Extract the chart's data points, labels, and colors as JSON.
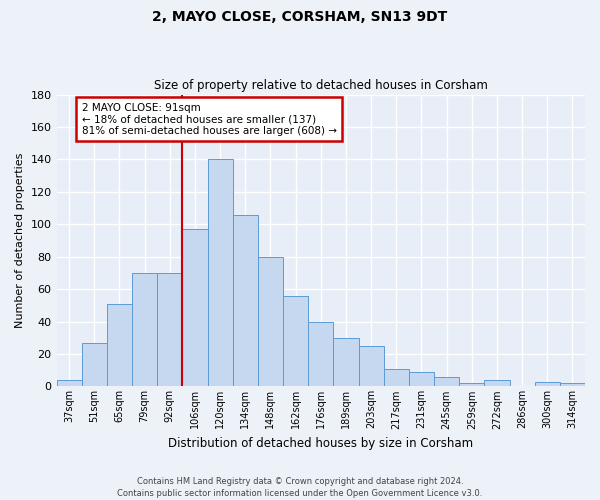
{
  "title": "2, MAYO CLOSE, CORSHAM, SN13 9DT",
  "subtitle": "Size of property relative to detached houses in Corsham",
  "xlabel": "Distribution of detached houses by size in Corsham",
  "ylabel": "Number of detached properties",
  "bar_labels": [
    "37sqm",
    "51sqm",
    "65sqm",
    "79sqm",
    "92sqm",
    "106sqm",
    "120sqm",
    "134sqm",
    "148sqm",
    "162sqm",
    "176sqm",
    "189sqm",
    "203sqm",
    "217sqm",
    "231sqm",
    "245sqm",
    "259sqm",
    "272sqm",
    "286sqm",
    "300sqm",
    "314sqm"
  ],
  "bar_values": [
    4,
    27,
    51,
    70,
    70,
    97,
    140,
    106,
    80,
    56,
    40,
    30,
    25,
    11,
    9,
    6,
    2,
    4,
    0,
    3,
    2
  ],
  "bar_color": "#c5d8f0",
  "bar_edge_color": "#5b9bd5",
  "annotation_title": "2 MAYO CLOSE: 91sqm",
  "annotation_line1": "← 18% of detached houses are smaller (137)",
  "annotation_line2": "81% of semi-detached houses are larger (608) →",
  "annotation_box_color": "#ffffff",
  "annotation_box_edge_color": "#cc0000",
  "vline_color": "#cc0000",
  "ylim": [
    0,
    180
  ],
  "yticks": [
    0,
    20,
    40,
    60,
    80,
    100,
    120,
    140,
    160,
    180
  ],
  "background_color": "#edf2f9",
  "plot_bg_color": "#e8eef7",
  "grid_color": "#ffffff",
  "footer_line1": "Contains HM Land Registry data © Crown copyright and database right 2024.",
  "footer_line2": "Contains public sector information licensed under the Open Government Licence v3.0."
}
